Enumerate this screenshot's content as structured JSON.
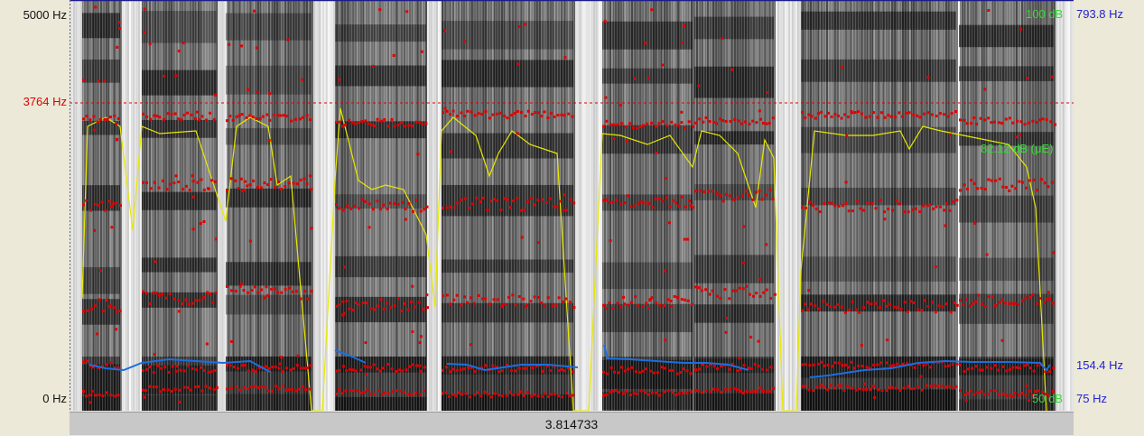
{
  "left_axis": {
    "top_label": "5000 Hz",
    "cursor_label": "3764 Hz",
    "bottom_label": "0 Hz"
  },
  "right_axis": {
    "intensity_top": "100 dB",
    "pitch_top": "793.8 Hz",
    "intensity_cursor": "82.12 dB (μE)",
    "pitch_cursor": "154.4 Hz",
    "intensity_bottom": "50 dB",
    "pitch_bottom": "75 Hz"
  },
  "selection": {
    "duration_label": "3.814733"
  },
  "colors": {
    "formant": "#e00000",
    "intensity": "#e8e800",
    "pitch": "#1a6fe0",
    "cursor": "#e00000",
    "intensity_label": "#33dd33",
    "pitch_label": "#2222cc"
  }
}
